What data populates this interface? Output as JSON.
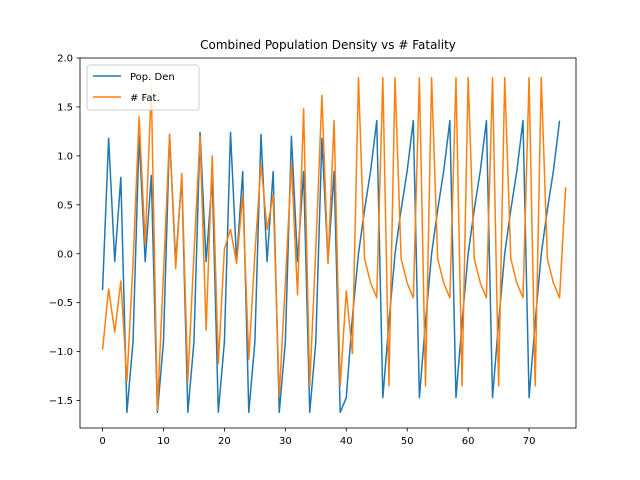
{
  "chart_data": {
    "type": "line",
    "title": "Combined Population Density vs # Fatality",
    "xlabel": "",
    "ylabel": "",
    "xlim": [
      -3.7,
      77.7
    ],
    "ylim": [
      -1.78,
      2.0
    ],
    "xticks": [
      0,
      10,
      20,
      30,
      40,
      50,
      60,
      70
    ],
    "yticks": [
      -1.5,
      -1.0,
      -0.5,
      0.0,
      0.5,
      1.0,
      1.5,
      2.0
    ],
    "xtick_labels": [
      "0",
      "10",
      "20",
      "30",
      "40",
      "50",
      "60",
      "70"
    ],
    "ytick_labels": [
      "−1.5",
      "−1.0",
      "−0.5",
      "0.0",
      "0.5",
      "1.0",
      "1.5",
      "2.0"
    ],
    "grid": false,
    "legend_position": "top-left",
    "series": [
      {
        "name": "Pop. Den",
        "color": "#1f77b4",
        "values": [
          -0.37,
          1.18,
          -0.08,
          0.78,
          -1.62,
          -0.9,
          1.2,
          -0.08,
          0.8,
          -1.62,
          -0.9,
          1.22,
          -0.08,
          0.78,
          -1.62,
          -0.9,
          1.24,
          -0.08,
          0.78,
          -1.62,
          -0.9,
          1.24,
          -0.08,
          0.84,
          -1.62,
          -0.9,
          1.22,
          -0.08,
          0.84,
          -1.62,
          -0.9,
          1.2,
          -0.08,
          0.84,
          -1.62,
          -0.9,
          1.18,
          -0.08,
          0.84,
          -1.62,
          -1.47,
          -0.65,
          0.0,
          0.45,
          0.85,
          1.36,
          -1.47,
          -0.7,
          0.0,
          0.45,
          0.85,
          1.36,
          -1.47,
          -0.7,
          0.0,
          0.45,
          0.85,
          1.36,
          -1.47,
          -0.7,
          0.0,
          0.45,
          0.85,
          1.36,
          -1.47,
          -0.7,
          0.0,
          0.45,
          0.85,
          1.36,
          -1.47,
          -0.7,
          0.0,
          0.45,
          0.85,
          1.36
        ]
      },
      {
        "name": "# Fat.",
        "color": "#ff7f0e",
        "values": [
          -0.98,
          -0.36,
          -0.8,
          -0.28,
          -1.3,
          -0.1,
          1.4,
          0.1,
          1.7,
          -1.6,
          -0.2,
          1.22,
          -0.15,
          0.82,
          -1.3,
          0.0,
          1.2,
          -0.78,
          1.0,
          -1.12,
          0.05,
          0.25,
          -0.1,
          0.6,
          -1.08,
          0.0,
          0.92,
          0.25,
          0.6,
          -1.45,
          -0.3,
          0.92,
          -0.42,
          1.48,
          -1.35,
          0.05,
          1.62,
          -0.1,
          1.36,
          -1.35,
          -0.38,
          -1.02,
          1.8,
          -0.05,
          -0.3,
          -0.45,
          1.8,
          -1.35,
          1.8,
          -0.05,
          -0.3,
          -0.45,
          1.8,
          -1.35,
          1.8,
          -0.05,
          -0.3,
          -0.45,
          1.8,
          -1.35,
          1.8,
          -0.05,
          -0.3,
          -0.45,
          1.8,
          -1.35,
          1.8,
          -0.05,
          -0.3,
          -0.45,
          1.8,
          -1.35,
          1.8,
          -0.05,
          -0.3,
          -0.45,
          0.68
        ]
      }
    ]
  }
}
